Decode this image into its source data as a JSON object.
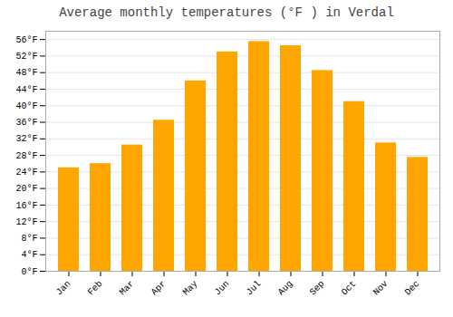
{
  "chart_data": {
    "type": "bar",
    "title": "Average monthly temperatures (°F ) in Verdal",
    "categories": [
      "Jan",
      "Feb",
      "Mar",
      "Apr",
      "May",
      "Jun",
      "Jul",
      "Aug",
      "Sep",
      "Oct",
      "Nov",
      "Dec"
    ],
    "values": [
      25.0,
      26.0,
      30.5,
      36.5,
      46.0,
      53.0,
      55.5,
      54.5,
      48.5,
      41.0,
      31.0,
      27.5
    ],
    "color": "#FFA500",
    "ylim": [
      0,
      58
    ],
    "yticks": [
      {
        "value": 0,
        "label": "0°F"
      },
      {
        "value": 4,
        "label": "4°F"
      },
      {
        "value": 8,
        "label": "8°F"
      },
      {
        "value": 12,
        "label": "12°F"
      },
      {
        "value": 16,
        "label": "16°F"
      },
      {
        "value": 20,
        "label": "20°F"
      },
      {
        "value": 24,
        "label": "24°F"
      },
      {
        "value": 28,
        "label": "28°F"
      },
      {
        "value": 32,
        "label": "32°F"
      },
      {
        "value": 36,
        "label": "36°F"
      },
      {
        "value": 40,
        "label": "40°F"
      },
      {
        "value": 44,
        "label": "44°F"
      },
      {
        "value": 48,
        "label": "48°F"
      },
      {
        "value": 52,
        "label": "52°F"
      },
      {
        "value": 56,
        "label": "56°F"
      }
    ],
    "grid": true
  }
}
